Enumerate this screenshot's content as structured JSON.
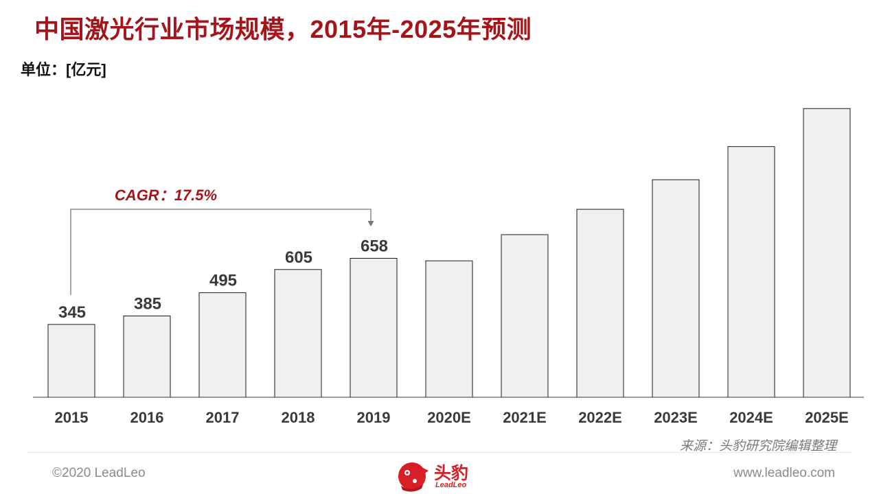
{
  "title": "中国激光行业市场规模，2015年-2025年预测",
  "unit_label": "单位：[亿元]",
  "chart_data": {
    "type": "bar",
    "categories": [
      "2015",
      "2016",
      "2017",
      "2018",
      "2019",
      "2020E",
      "2021E",
      "2022E",
      "2023E",
      "2024E",
      "2025E"
    ],
    "values": [
      345,
      385,
      495,
      605,
      658,
      646,
      770,
      890,
      1030,
      1187,
      1367
    ],
    "labels": [
      "345",
      "385",
      "495",
      "605",
      "658",
      "",
      "",
      "",
      "",
      "",
      ""
    ],
    "ylim": [
      0,
      1400
    ],
    "grid": false,
    "annotation": {
      "text": "CAGR：17.5%",
      "from": "2015",
      "to": "2019"
    }
  },
  "source": "来源：头豹研究院编辑整理",
  "footer": {
    "copyright": "©2020 LeadLeo",
    "website": "www.leadleo.com",
    "logo_name": "头豹",
    "logo_sub": "LeadLeo"
  },
  "colors": {
    "title": "#a6141a",
    "bar_fill": "#f0f0f2",
    "bar_stroke": "#1a1a1a",
    "brand": "#d81e26"
  }
}
